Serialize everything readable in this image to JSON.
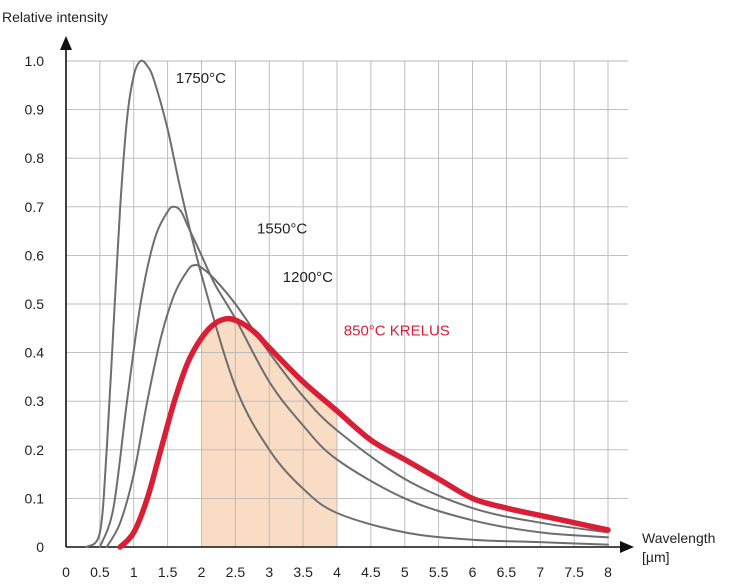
{
  "chart_data": {
    "type": "line",
    "title": "",
    "ylabel": "Relative intensity",
    "xlabel_line1": "Wavelength",
    "xlabel_line2": "[µm]",
    "xlim": [
      0,
      8
    ],
    "ylim": [
      0,
      1.0
    ],
    "grid": true,
    "x_ticks": [
      0,
      0.5,
      1,
      1.5,
      2,
      2.5,
      3,
      3.5,
      4,
      4.5,
      5,
      5.5,
      6,
      6.5,
      7,
      7.5,
      8
    ],
    "x_tick_labels": [
      "0",
      "0.5",
      "1",
      "1.5",
      "2",
      "2.5",
      "3",
      "3.5",
      "4",
      "4.5",
      "5",
      "5.5",
      "6",
      "6.5",
      "7",
      "7.5",
      "8"
    ],
    "y_ticks": [
      0,
      0.1,
      0.2,
      0.3,
      0.4,
      0.5,
      0.6,
      0.7,
      0.8,
      0.9,
      1.0
    ],
    "y_tick_labels": [
      "0",
      "0.1",
      "0.2",
      "0.3",
      "0.4",
      "0.5",
      "0.6",
      "0.7",
      "0.8",
      "0.9",
      "1.0"
    ],
    "highlight_band": {
      "x_start": 2,
      "x_end": 4,
      "color": "#f9dcc4"
    },
    "series": [
      {
        "name": "1750°C",
        "color": "#6e6e6e",
        "x": [
          0.3,
          0.5,
          0.6,
          0.7,
          0.8,
          0.9,
          1.0,
          1.1,
          1.2,
          1.3,
          1.5,
          1.7,
          2.0,
          2.5,
          3.0,
          3.5,
          4.0,
          5.0,
          6.0,
          7.0,
          8.0
        ],
        "y": [
          0.0,
          0.03,
          0.2,
          0.45,
          0.7,
          0.88,
          0.97,
          1.0,
          0.99,
          0.96,
          0.86,
          0.73,
          0.56,
          0.33,
          0.2,
          0.12,
          0.07,
          0.03,
          0.015,
          0.01,
          0.005
        ]
      },
      {
        "name": "1550°C",
        "color": "#6e6e6e",
        "x": [
          0.5,
          0.7,
          0.9,
          1.1,
          1.3,
          1.5,
          1.6,
          1.7,
          1.8,
          2.0,
          2.2,
          2.5,
          3.0,
          3.5,
          4.0,
          5.0,
          6.0,
          7.0,
          8.0
        ],
        "y": [
          0.0,
          0.08,
          0.3,
          0.5,
          0.63,
          0.69,
          0.7,
          0.69,
          0.66,
          0.6,
          0.54,
          0.47,
          0.34,
          0.25,
          0.18,
          0.1,
          0.055,
          0.03,
          0.02
        ]
      },
      {
        "name": "1200°C",
        "color": "#6e6e6e",
        "x": [
          0.6,
          0.8,
          1.0,
          1.2,
          1.4,
          1.6,
          1.8,
          1.9,
          2.0,
          2.2,
          2.5,
          3.0,
          3.5,
          4.0,
          5.0,
          6.0,
          7.0,
          8.0
        ],
        "y": [
          0.0,
          0.05,
          0.15,
          0.3,
          0.43,
          0.52,
          0.57,
          0.58,
          0.575,
          0.55,
          0.5,
          0.4,
          0.31,
          0.24,
          0.14,
          0.08,
          0.05,
          0.03
        ]
      },
      {
        "name": "850°C KRELUS",
        "color": "#d91f36",
        "x": [
          0.8,
          1.0,
          1.2,
          1.4,
          1.6,
          1.8,
          2.0,
          2.2,
          2.4,
          2.6,
          2.8,
          3.0,
          3.5,
          4.0,
          4.5,
          5.0,
          5.5,
          6.0,
          6.5,
          7.0,
          7.5,
          8.0
        ],
        "y": [
          0.0,
          0.03,
          0.1,
          0.2,
          0.3,
          0.38,
          0.43,
          0.46,
          0.47,
          0.46,
          0.44,
          0.41,
          0.34,
          0.28,
          0.22,
          0.18,
          0.14,
          0.1,
          0.08,
          0.065,
          0.05,
          0.035
        ]
      }
    ],
    "annotations": [
      {
        "text": "1750°C",
        "x": 1.62,
        "y": 0.955,
        "color": "#222222"
      },
      {
        "text": "1550°C",
        "x": 2.82,
        "y": 0.645,
        "color": "#222222"
      },
      {
        "text": "1200°C",
        "x": 3.2,
        "y": 0.545,
        "color": "#222222"
      },
      {
        "text": "850°C KRELUS",
        "x": 4.1,
        "y": 0.435,
        "color": "#d91f36"
      }
    ]
  }
}
